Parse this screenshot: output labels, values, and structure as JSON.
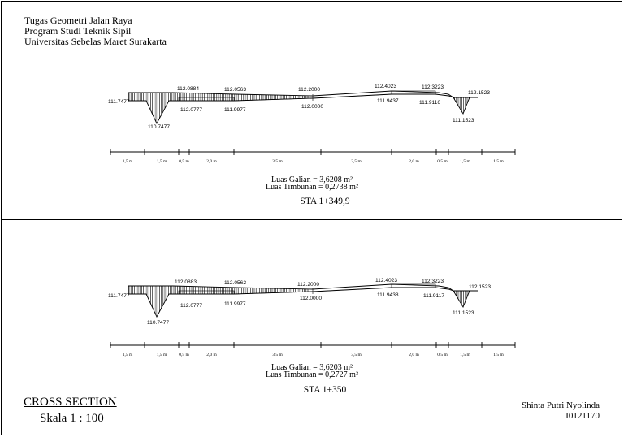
{
  "header": {
    "line1": "Tugas Geometri Jalan Raya",
    "line2": "Program Studi Teknik Sipil",
    "line3": "Universitas Sebelas Maret Surakarta"
  },
  "sections": [
    {
      "elevations": {
        "left_edge": "111.7477",
        "ditch_left": "110.7477",
        "top_1": "112.0884",
        "bottom_1": "112.0777",
        "top_2": "112.0563",
        "bottom_2": "111.9977",
        "center_top": "112.2000",
        "center_bottom": "112.0000",
        "top_3": "112.4023",
        "bottom_3": "111.9437",
        "top_4": "112.3223",
        "bottom_4": "111.9116",
        "right_edge": "112.1523",
        "ditch_right": "111.1523"
      },
      "dimensions": [
        "1,5 m",
        "1,5 m",
        "0,5 m",
        "2,0 m",
        "3,5 m",
        "3,5 m",
        "2,0 m",
        "0,5 m",
        "1,5 m",
        "1,5 m"
      ],
      "luas_galian": "Luas Galian = 3,6208 m²",
      "luas_timbunan": "Luas Timbunan = 0,2738 m²",
      "station": "STA 1+349,9"
    },
    {
      "elevations": {
        "left_edge": "111.7477",
        "ditch_left": "110.7477",
        "top_1": "112.0883",
        "bottom_1": "112.0777",
        "top_2": "112.0562",
        "bottom_2": "111.9977",
        "center_top": "112.2000",
        "center_bottom": "112.0000",
        "top_3": "112.4023",
        "bottom_3": "111.9438",
        "top_4": "112.3223",
        "bottom_4": "111.9117",
        "right_edge": "112.1523",
        "ditch_right": "111.1523"
      },
      "dimensions": [
        "1,5 m",
        "1,5 m",
        "0,5 m",
        "2,0 m",
        "3,5 m",
        "3,5 m",
        "2,0 m",
        "0,5 m",
        "1,5 m",
        "1,5 m"
      ],
      "luas_galian": "Luas Galian = 3,6203  m²",
      "luas_timbunan": "Luas Timbunan = 0,2727  m²",
      "station": "STA 1+350"
    }
  ],
  "footer": {
    "title": "CROSS SECTION",
    "scale": "Skala 1 : 100",
    "author": "Shinta Putri Nyolinda",
    "student_id": "I0121170"
  }
}
